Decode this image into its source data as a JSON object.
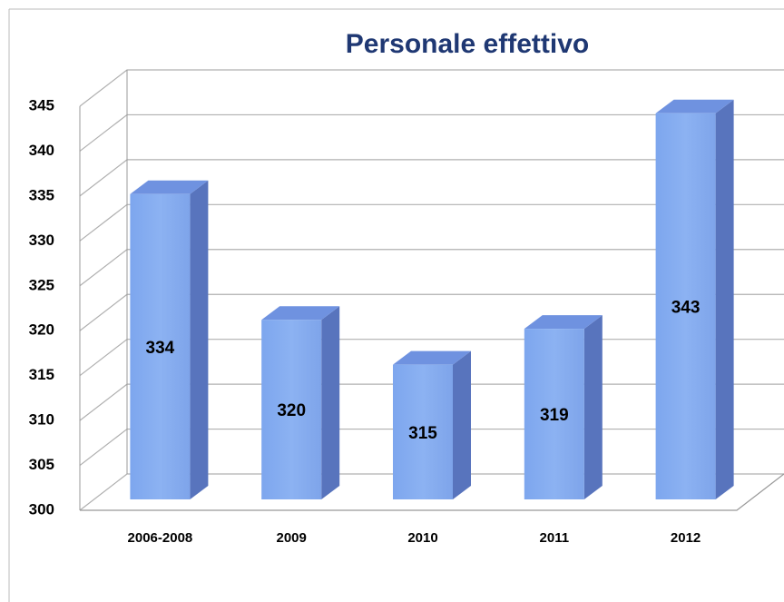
{
  "chart_data": {
    "type": "bar3d",
    "title": "Personale effettivo",
    "categories": [
      "2006-2008",
      "2009",
      "2010",
      "2011",
      "2012"
    ],
    "values": [
      334,
      320,
      315,
      319,
      343
    ],
    "color": "#8cb2f2",
    "ylim": [
      300,
      345
    ],
    "yticks": [
      300,
      305,
      310,
      315,
      320,
      325,
      330,
      335,
      340,
      345
    ],
    "grid": true
  }
}
